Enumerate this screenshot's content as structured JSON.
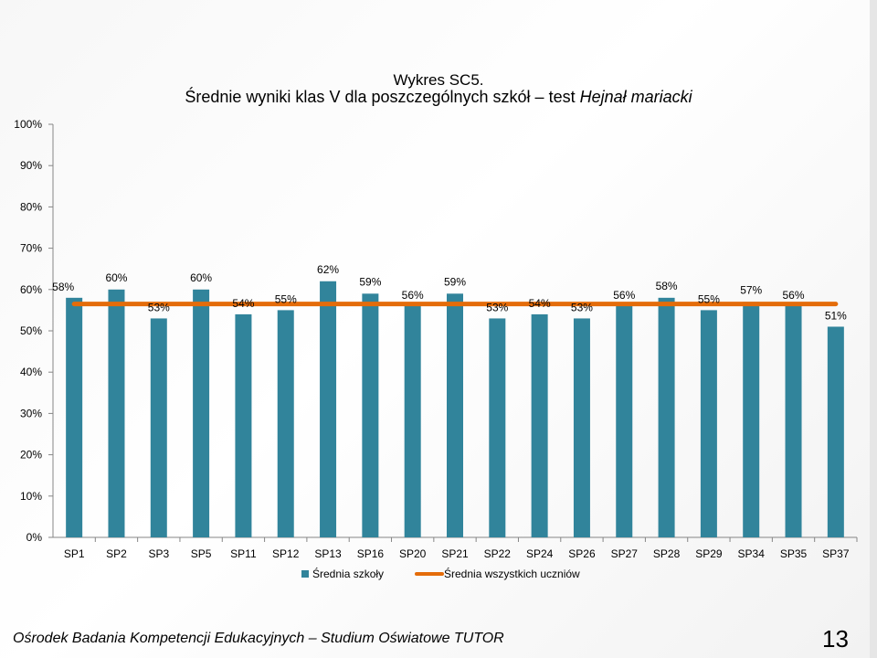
{
  "chart_data": {
    "type": "bar",
    "title_line1": "Wykres SC5.",
    "title_line2_prefix": "Średnie wyniki klas V dla poszczególnych szkół – test ",
    "title_line2_italic": "Hejnał mariacki",
    "categories": [
      "SP1",
      "SP2",
      "SP3",
      "SP5",
      "SP11",
      "SP12",
      "SP13",
      "SP16",
      "SP20",
      "SP21",
      "SP22",
      "SP24",
      "SP26",
      "SP27",
      "SP28",
      "SP29",
      "SP34",
      "SP35",
      "SP37"
    ],
    "series": [
      {
        "name": "Średnia szkoły",
        "type": "bar",
        "color": "#31849b",
        "values": [
          58,
          60,
          53,
          60,
          54,
          55,
          62,
          59,
          56,
          59,
          53,
          54,
          53,
          56,
          58,
          55,
          57,
          56,
          51
        ],
        "labels": [
          "58%",
          "60%",
          "53%",
          "60%",
          "54%",
          "55%",
          "62%",
          "59%",
          "56%",
          "59%",
          "53%",
          "54%",
          "53%",
          "56%",
          "58%",
          "55%",
          "57%",
          "56%",
          "51%"
        ]
      },
      {
        "name": "Średnia wszystkich uczniów",
        "type": "line",
        "color": "#e46c0a",
        "value": 56.5
      }
    ],
    "ylim": [
      0,
      100
    ],
    "yticks": [
      0,
      10,
      20,
      30,
      40,
      50,
      60,
      70,
      80,
      90,
      100
    ],
    "ytick_labels": [
      "0%",
      "10%",
      "20%",
      "30%",
      "40%",
      "50%",
      "60%",
      "70%",
      "80%",
      "90%",
      "100%"
    ],
    "grid": false,
    "legend_position": "bottom"
  },
  "footer": {
    "text": "Ośrodek Badania Kompetencji Edukacyjnych – Studium Oświatowe TUTOR",
    "page_number": "13"
  }
}
